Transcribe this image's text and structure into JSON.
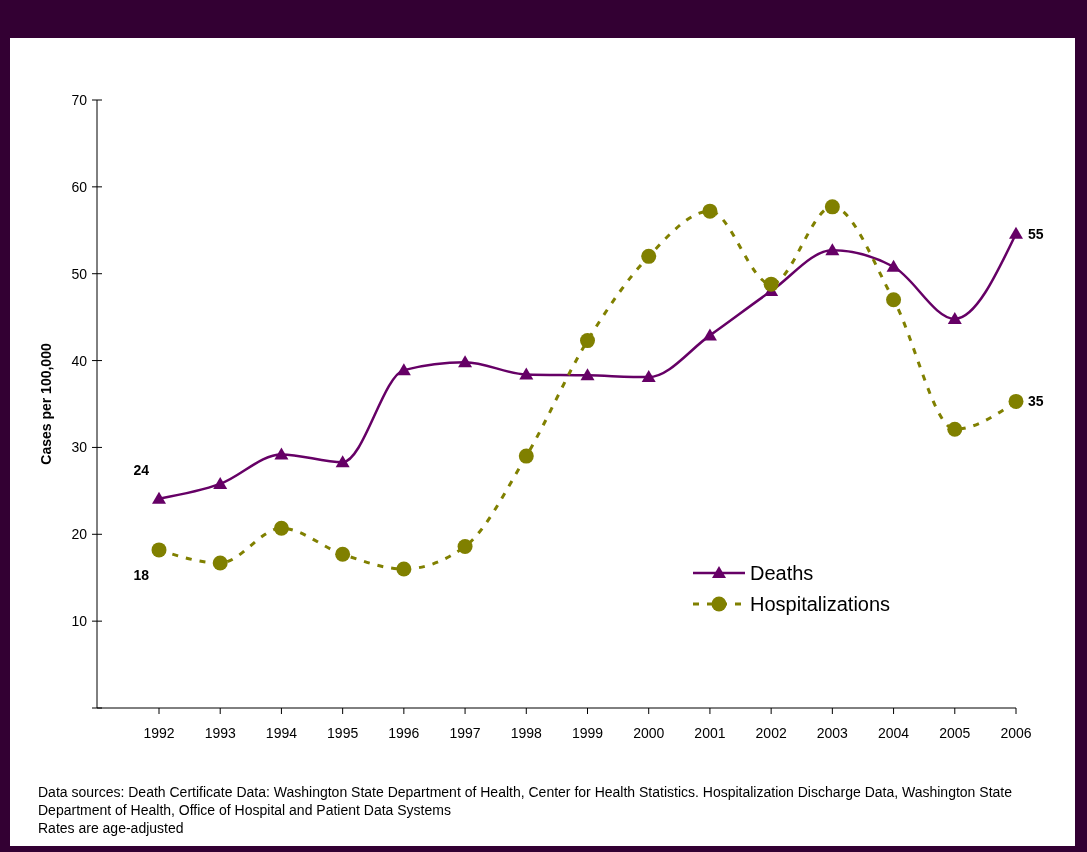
{
  "chart_data": {
    "type": "line",
    "ylabel": "Cases per 100,000",
    "categories": [
      "1992",
      "1993",
      "1994",
      "1995",
      "1996",
      "1997",
      "1998",
      "1999",
      "2000",
      "2001",
      "2002",
      "2003",
      "2004",
      "2005",
      "2006"
    ],
    "series": [
      {
        "name": "Deaths",
        "color": "#660066",
        "marker": "triangle",
        "line_style": "solid",
        "values": [
          24.1,
          25.8,
          29.2,
          28.3,
          38.9,
          39.8,
          38.4,
          38.3,
          38.1,
          42.9,
          48.0,
          52.7,
          50.8,
          44.8,
          54.6
        ],
        "value_labels": [
          "24",
          null,
          null,
          null,
          null,
          null,
          null,
          null,
          null,
          null,
          null,
          null,
          null,
          null,
          "55"
        ]
      },
      {
        "name": "Hospitalizations",
        "color": "#808000",
        "marker": "circle",
        "line_style": "dashed",
        "values": [
          18.2,
          16.7,
          20.7,
          17.7,
          16.0,
          18.6,
          29.0,
          42.3,
          52.0,
          57.2,
          48.8,
          57.7,
          47.0,
          32.1,
          35.3
        ],
        "value_labels": [
          "18",
          null,
          null,
          null,
          null,
          null,
          null,
          null,
          null,
          null,
          null,
          null,
          null,
          null,
          "35"
        ]
      }
    ],
    "ylim": [
      0,
      70
    ],
    "yticks": [
      {
        "value": 0,
        "label": null
      },
      10,
      20,
      30,
      40,
      50,
      60,
      70
    ],
    "grid": false,
    "legend": "bottom right",
    "annotations": [
      "Data sources: Death Certificate Data: Washington State Department of Health, Center for Health Statistics. Hospitalization Discharge Data, Washington State Department of Health, Office of Hospital and Patient Data Systems",
      "Rates are age-adjusted"
    ]
  }
}
